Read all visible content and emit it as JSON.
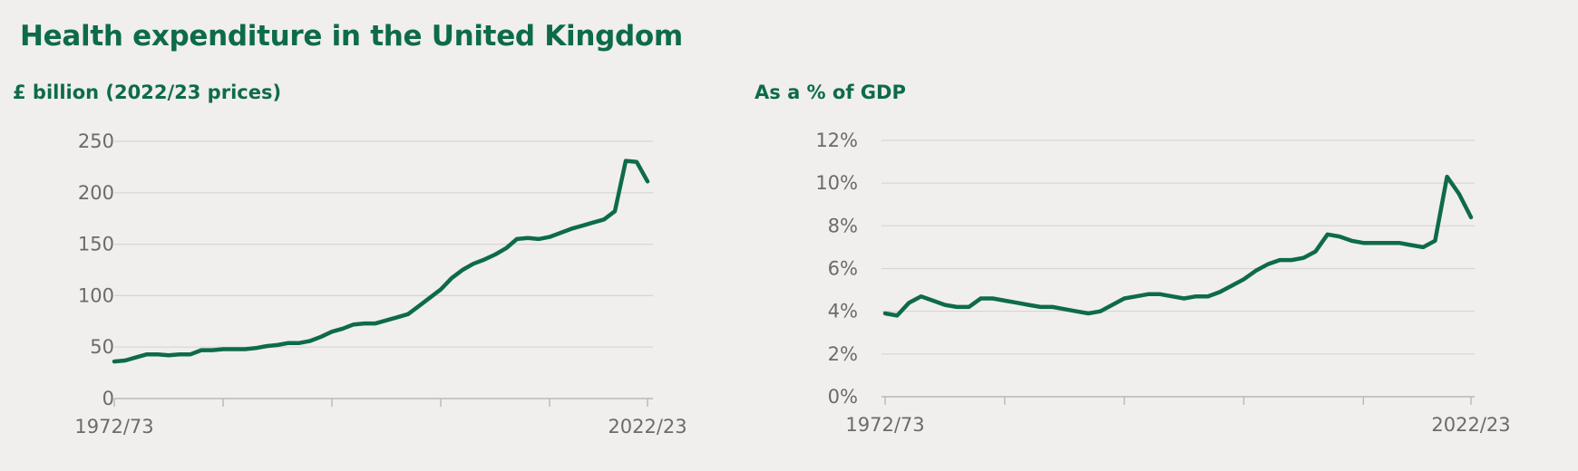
{
  "title": "Health expenditure in the United Kingdom",
  "colors": {
    "accent": "#0e6b4a",
    "background": "#f0efed",
    "grid": "#d6d5d2",
    "tick_text": "#6b6b6b"
  },
  "chart_data": [
    {
      "type": "line",
      "title": "£ billion (2022/23 prices)",
      "series": [
        {
          "values": [
            36,
            37,
            40,
            43,
            43,
            42,
            43,
            43,
            47,
            47,
            48,
            48,
            48,
            49,
            51,
            52,
            54,
            54,
            56,
            60,
            65,
            68,
            72,
            73,
            73,
            76,
            79,
            82,
            90,
            98,
            106,
            117,
            125,
            131,
            135,
            140,
            146,
            155,
            156,
            155,
            157,
            161,
            165,
            168,
            171,
            174,
            182,
            231,
            230,
            211
          ]
        }
      ],
      "x_start": "1972/73",
      "x_end": "2022/23",
      "x_tick_labels": [
        "1972/73",
        "2022/23"
      ],
      "ylim": [
        0,
        250
      ],
      "y_ticks": [
        0,
        50,
        100,
        150,
        200,
        250
      ],
      "y_tick_labels": [
        "0",
        "50",
        "100",
        "150",
        "200",
        "250"
      ],
      "grid": true
    },
    {
      "type": "line",
      "title": "As a % of GDP",
      "series": [
        {
          "values": [
            3.9,
            3.8,
            4.4,
            4.7,
            4.5,
            4.3,
            4.2,
            4.2,
            4.6,
            4.6,
            4.5,
            4.4,
            4.3,
            4.2,
            4.2,
            4.1,
            4.0,
            3.9,
            4.0,
            4.3,
            4.6,
            4.7,
            4.8,
            4.8,
            4.7,
            4.6,
            4.7,
            4.7,
            4.9,
            5.2,
            5.5,
            5.9,
            6.2,
            6.4,
            6.4,
            6.5,
            6.8,
            7.6,
            7.5,
            7.3,
            7.2,
            7.2,
            7.2,
            7.2,
            7.1,
            7.0,
            7.3,
            10.3,
            9.5,
            8.4
          ]
        }
      ],
      "x_start": "1972/73",
      "x_end": "2022/23",
      "x_tick_labels": [
        "1972/73",
        "2022/23"
      ],
      "ylim": [
        0,
        12
      ],
      "y_ticks": [
        0,
        2,
        4,
        6,
        8,
        10,
        12
      ],
      "y_tick_labels": [
        "0%",
        "2%",
        "4%",
        "6%",
        "8%",
        "10%",
        "12%"
      ],
      "grid": true
    }
  ]
}
